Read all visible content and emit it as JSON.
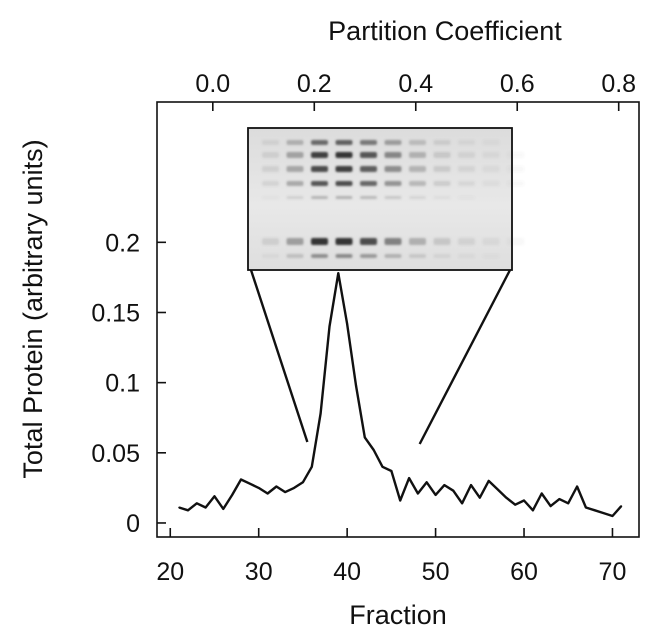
{
  "chart_data": {
    "type": "line",
    "xlabel": "Fraction",
    "ylabel": "Total Protein (arbitrary units)",
    "x2label": "Partition Coefficient",
    "xlim": [
      18.5,
      73
    ],
    "ylim": [
      -0.01,
      0.3
    ],
    "x_ticks": [
      20,
      30,
      40,
      50,
      60,
      70
    ],
    "y_ticks": [
      0,
      0.05,
      0.1,
      0.15,
      0.2
    ],
    "y_tick_labels": [
      "0",
      "0.05",
      "0.1",
      "0.15",
      "0.2"
    ],
    "x2_ticks": [
      0.0,
      0.2,
      0.4,
      0.6,
      0.8
    ],
    "x2_tick_labels": [
      "0.0",
      "0.2",
      "0.4",
      "0.6",
      "0.8"
    ],
    "x2lim": [
      -0.11,
      0.84
    ],
    "grid": false,
    "legend": "none",
    "inset": {
      "type": "gel image",
      "fraction_range": [
        35.5,
        48.2
      ]
    },
    "series": [
      {
        "x": [
          21,
          22,
          23,
          24,
          25,
          26,
          27,
          28,
          29,
          30,
          31,
          32,
          33,
          34,
          35,
          36,
          37,
          38,
          39,
          40,
          41,
          42,
          43,
          44,
          45,
          46,
          47,
          48,
          49,
          50,
          51,
          52,
          53,
          54,
          55,
          56,
          57,
          58,
          59,
          60,
          61,
          62,
          63,
          64,
          65,
          66,
          67,
          68,
          69,
          70,
          71
        ],
        "y": [
          0.011,
          0.009,
          0.014,
          0.011,
          0.019,
          0.01,
          0.02,
          0.031,
          0.028,
          0.025,
          0.021,
          0.026,
          0.022,
          0.025,
          0.029,
          0.04,
          0.078,
          0.14,
          0.178,
          0.142,
          0.098,
          0.061,
          0.052,
          0.04,
          0.037,
          0.016,
          0.032,
          0.021,
          0.029,
          0.02,
          0.027,
          0.023,
          0.014,
          0.027,
          0.018,
          0.03,
          0.024,
          0.018,
          0.013,
          0.016,
          0.009,
          0.021,
          0.012,
          0.017,
          0.014,
          0.026,
          0.011,
          0.009,
          0.007,
          0.005,
          0.012
        ]
      }
    ]
  }
}
